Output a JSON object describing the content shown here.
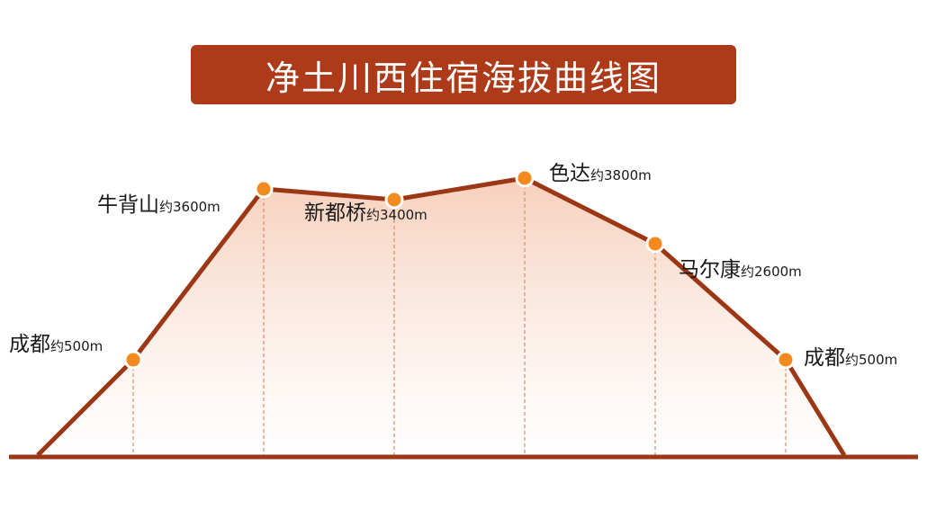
{
  "title": "净土川西住宿海拔曲线图",
  "colors": {
    "banner": "#ad3b1a",
    "line": "#9c3716",
    "marker": "#f28a1e",
    "fill_top": "#f6cdb8",
    "fill_bottom": "#ffffff",
    "dash": "#d98a6e"
  },
  "chart_data": {
    "type": "area",
    "title": "净土川西住宿海拔曲线图",
    "xlabel": "",
    "ylabel": "",
    "grid": false,
    "legend": "none",
    "points": [
      {
        "name": "成都",
        "prefix": "约",
        "value_label": "500m",
        "altitude": 500,
        "label_side": "left"
      },
      {
        "name": "牛背山",
        "prefix": "约",
        "value_label": "3600m",
        "altitude": 3600,
        "label_side": "left"
      },
      {
        "name": "新都桥",
        "prefix": "约",
        "value_label": "3400m",
        "altitude": 3400,
        "label_side": "left-high"
      },
      {
        "name": "色达",
        "prefix": "约",
        "value_label": "3800m",
        "altitude": 3800,
        "label_side": "right"
      },
      {
        "name": "马尔康",
        "prefix": "约",
        "value_label": "2600m",
        "altitude": 2600,
        "label_side": "right"
      },
      {
        "name": "成都",
        "prefix": "约",
        "value_label": "500m",
        "altitude": 500,
        "label_side": "right"
      }
    ]
  }
}
